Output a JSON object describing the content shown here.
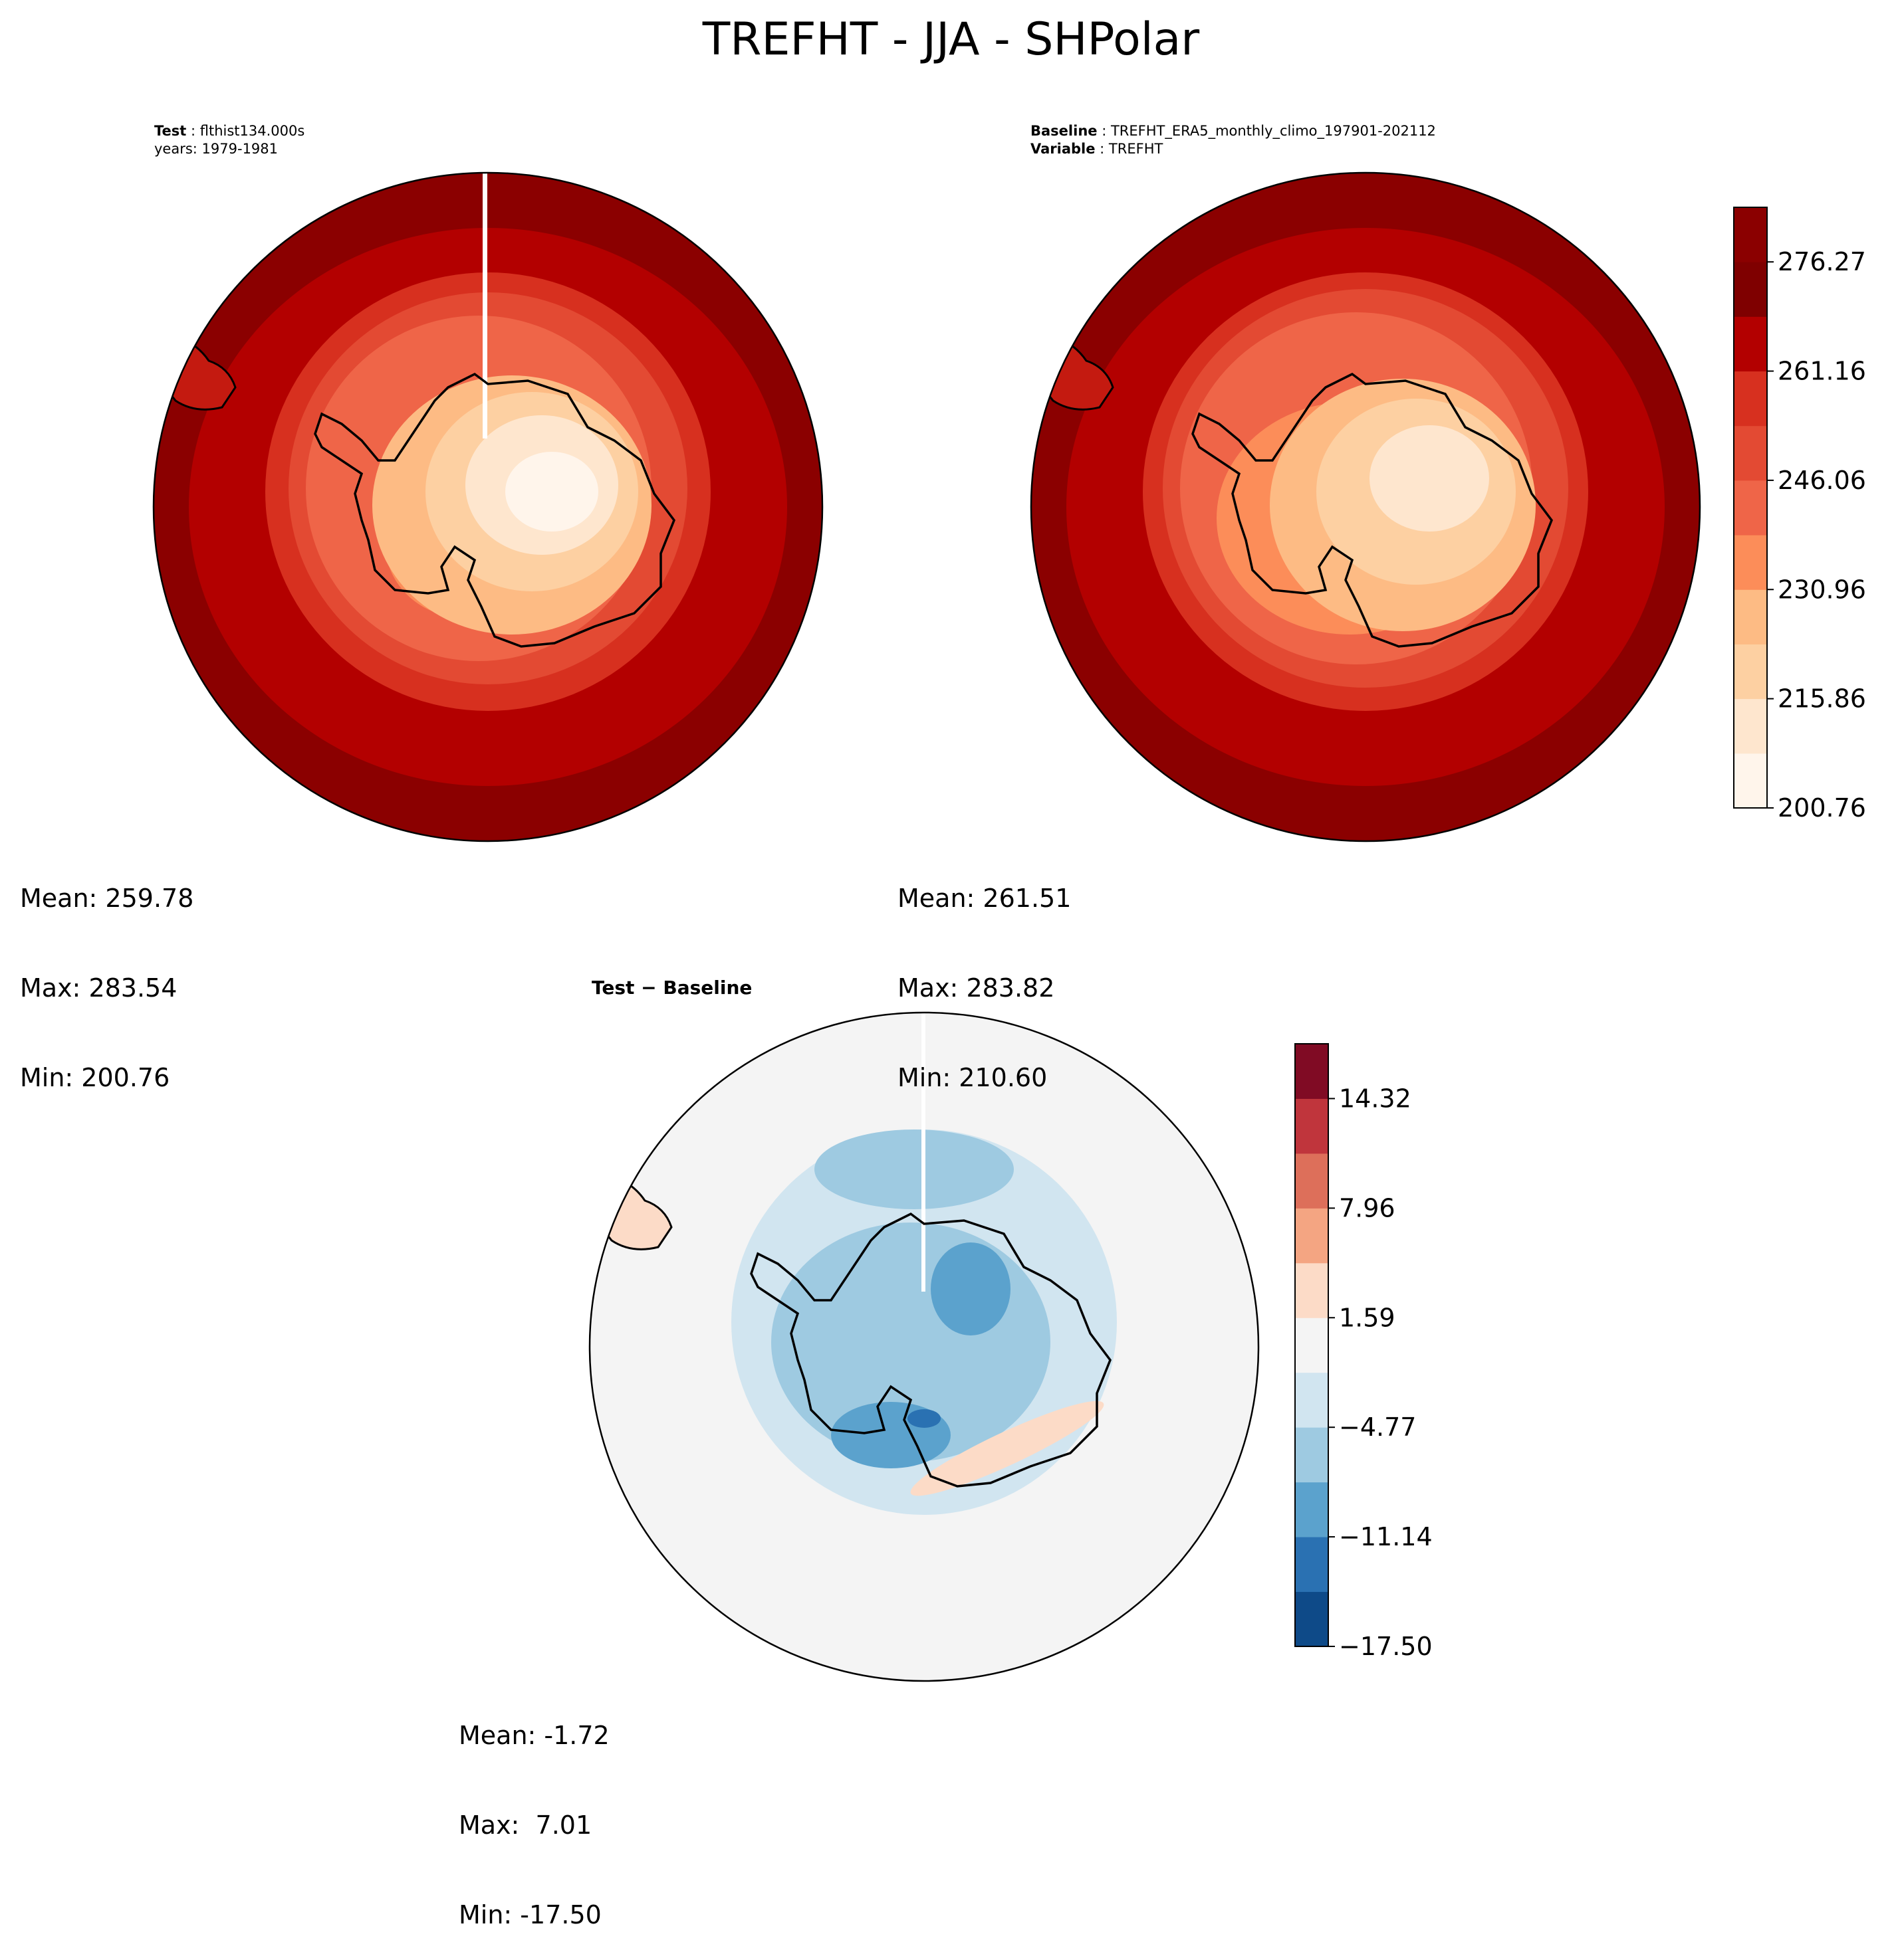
{
  "title": "TREFHT - JJA - SHPolar",
  "panels": {
    "test": {
      "header_label": "Test",
      "header_value": "flthist134.000s",
      "header_line2": "years: 1979-1981",
      "mean": "Mean: 259.78",
      "max": "Max: 283.54",
      "min": "Min: 200.76"
    },
    "baseline": {
      "header_label": "Baseline",
      "header_value": "TREFHT_ERA5_monthly_climo_197901-202112",
      "variable_label": "Variable",
      "variable_value": "TREFHT",
      "mean": "Mean: 261.51",
      "max": "Max: 283.82",
      "min": "Min: 210.60"
    },
    "diff": {
      "header": "Test − Baseline",
      "mean": "Mean: -1.72",
      "max": "Max:  7.01",
      "min": "Min: -17.50"
    }
  },
  "colorbars": {
    "top": {
      "ticks": [
        "200.76",
        "215.86",
        "230.96",
        "246.06",
        "261.16",
        "276.27"
      ],
      "colors": [
        "#fff5eb",
        "#fee6ce",
        "#fdd0a2",
        "#fdbb84",
        "#fc8d59",
        "#ef6548",
        "#e34a33",
        "#d7301f",
        "#b30000",
        "#7f0000",
        "#8b0000"
      ]
    },
    "diff": {
      "ticks": [
        "−17.50",
        "−11.14",
        "−4.77",
        "1.59",
        "7.96",
        "14.32"
      ],
      "colors": [
        "#0e4a88",
        "#2a71b2",
        "#5ba2cd",
        "#9ecae1",
        "#d1e5f0",
        "#f4f4f4",
        "#fcdbc7",
        "#f4a582",
        "#dd6f5a",
        "#c0353c",
        "#800b24"
      ]
    }
  },
  "chart_data": {
    "type": "heatmap",
    "title": "TREFHT - JJA - SHPolar",
    "panels": [
      {
        "name": "Test",
        "mean": 259.78,
        "max": 283.54,
        "min": 200.76
      },
      {
        "name": "Baseline",
        "mean": 261.51,
        "max": 283.82,
        "min": 210.6
      },
      {
        "name": "Test − Baseline",
        "mean": -1.72,
        "max": 7.01,
        "min": -17.5
      }
    ],
    "colorbar_top_range": [
      200.76,
      283.82
    ],
    "colorbar_diff_range": [
      -17.5,
      17.5
    ]
  }
}
